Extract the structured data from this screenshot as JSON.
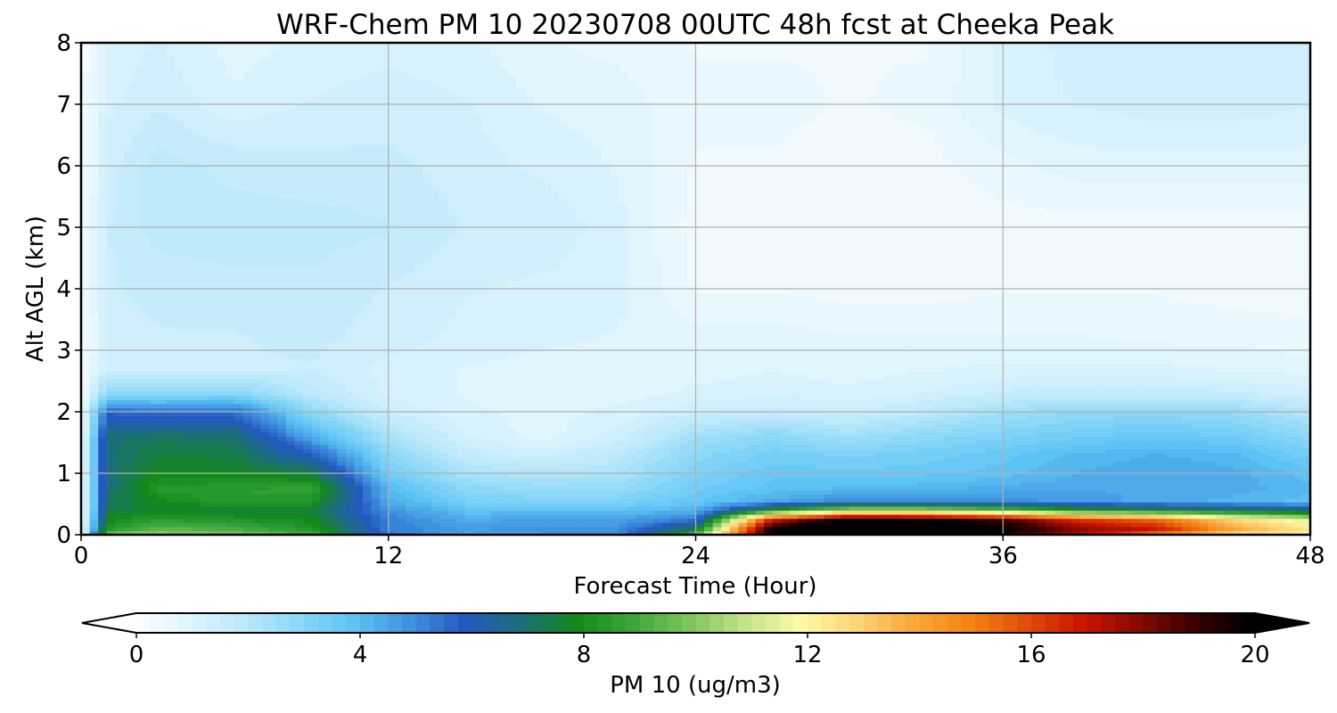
{
  "chart_data": {
    "type": "heatmap",
    "title": "WRF-Chem PM 10  20230708 00UTC 48h fcst at Cheeka Peak",
    "xlabel": "Forecast Time (Hour)",
    "ylabel": "Alt AGL (km)",
    "xlim": [
      0,
      48
    ],
    "ylim": [
      0,
      8
    ],
    "x_ticks": [
      0,
      12,
      24,
      36,
      48
    ],
    "y_ticks": [
      0,
      1,
      2,
      3,
      4,
      5,
      6,
      7,
      8
    ],
    "grid": true,
    "colorbar": {
      "label": "PM 10  (ug/m3)",
      "min": 0,
      "max": 20,
      "ticks": [
        0,
        4,
        8,
        12,
        16,
        20
      ],
      "extend": "both",
      "orientation": "horizontal",
      "placement": "bottom",
      "colors": [
        "#ffffff",
        "#e1f5fd",
        "#bde9fb",
        "#8cd8f7",
        "#5dc3f4",
        "#3f92de",
        "#2459c2",
        "#1c6e7a",
        "#128a1a",
        "#3ca63c",
        "#7ec45a",
        "#c4e388",
        "#fdf9a6",
        "#fcd576",
        "#f9a83c",
        "#f48513",
        "#e04f0a",
        "#cc1600",
        "#8a0a00",
        "#3c0000",
        "#000000"
      ]
    },
    "x_hours": [
      0,
      1,
      3,
      6,
      9,
      12,
      15,
      18,
      21,
      24,
      27,
      30,
      33,
      36,
      39,
      42,
      45,
      48
    ],
    "z_km": [
      0,
      0.1,
      0.25,
      0.4,
      0.55,
      0.75,
      1.0,
      1.3,
      1.6,
      2.0,
      2.3,
      2.7,
      3.2,
      4.0,
      5.0,
      6.0,
      7.0,
      8.0
    ],
    "values_ug_m3": [
      [
        0.3,
        10.0,
        10.5,
        10.0,
        9.0,
        5.5,
        4.5,
        4.8,
        5.2,
        9.5,
        20.0,
        22.0,
        21.0,
        19.5,
        17.5,
        15.0,
        12.5,
        12.0
      ],
      [
        0.3,
        8.5,
        9.5,
        9.2,
        8.5,
        5.4,
        4.8,
        5.0,
        5.0,
        7.5,
        20.0,
        22.0,
        21.5,
        20.0,
        18.0,
        17.0,
        14.0,
        12.5
      ],
      [
        0.3,
        8.0,
        8.6,
        8.4,
        8.0,
        5.3,
        4.5,
        4.7,
        4.7,
        5.5,
        17.0,
        20.5,
        20.0,
        19.0,
        16.5,
        15.5,
        13.0,
        11.5
      ],
      [
        0.3,
        7.5,
        7.8,
        7.6,
        7.6,
        5.0,
        4.0,
        4.0,
        4.0,
        4.4,
        8.5,
        11.0,
        11.0,
        10.0,
        8.5,
        8.0,
        7.5,
        7.0
      ],
      [
        0.3,
        7.2,
        8.0,
        8.6,
        8.4,
        4.5,
        3.4,
        3.3,
        3.3,
        3.8,
        4.5,
        5.2,
        5.0,
        5.0,
        4.8,
        4.5,
        4.3,
        4.0
      ],
      [
        0.3,
        7.0,
        8.5,
        8.6,
        8.8,
        4.2,
        3.0,
        2.8,
        2.8,
        3.6,
        4.0,
        4.2,
        4.3,
        4.5,
        4.6,
        4.6,
        4.5,
        4.2
      ],
      [
        0.3,
        7.0,
        8.0,
        8.0,
        7.6,
        3.6,
        2.4,
        2.2,
        2.4,
        3.3,
        3.8,
        3.7,
        3.8,
        4.0,
        4.4,
        4.6,
        4.5,
        4.0
      ],
      [
        0.3,
        7.0,
        7.6,
        7.5,
        6.0,
        3.0,
        1.8,
        1.5,
        2.0,
        3.0,
        3.5,
        3.3,
        3.5,
        3.8,
        4.2,
        4.4,
        4.2,
        3.5
      ],
      [
        0.3,
        7.0,
        7.3,
        7.2,
        4.5,
        2.4,
        1.4,
        1.0,
        1.5,
        2.6,
        3.0,
        2.6,
        3.0,
        3.3,
        3.6,
        3.8,
        3.6,
        3.0
      ],
      [
        0.3,
        5.8,
        5.5,
        5.6,
        3.0,
        1.6,
        1.2,
        1.0,
        1.2,
        1.6,
        1.8,
        1.6,
        2.0,
        2.6,
        2.9,
        3.0,
        2.8,
        2.2
      ],
      [
        0.3,
        3.0,
        3.0,
        3.1,
        2.0,
        1.3,
        1.1,
        1.0,
        1.0,
        1.2,
        1.3,
        1.2,
        1.4,
        1.7,
        1.8,
        1.8,
        1.7,
        1.5
      ],
      [
        0.2,
        1.6,
        1.6,
        1.6,
        1.6,
        1.3,
        1.1,
        1.0,
        1.0,
        1.0,
        1.1,
        1.0,
        1.1,
        1.2,
        1.2,
        1.2,
        1.1,
        1.0
      ],
      [
        0.2,
        1.5,
        1.6,
        1.6,
        1.7,
        1.5,
        1.3,
        1.2,
        1.1,
        1.0,
        1.0,
        0.9,
        0.9,
        0.9,
        0.9,
        0.8,
        0.8,
        0.7
      ],
      [
        0.2,
        1.6,
        1.7,
        1.8,
        1.8,
        1.6,
        1.4,
        1.3,
        1.2,
        0.6,
        0.6,
        0.5,
        0.5,
        0.6,
        0.6,
        0.6,
        0.5,
        0.5
      ],
      [
        0.2,
        1.6,
        2.0,
        2.0,
        2.0,
        1.9,
        1.6,
        1.6,
        1.2,
        0.5,
        0.5,
        0.4,
        0.4,
        0.5,
        0.5,
        0.5,
        0.5,
        0.5
      ],
      [
        0.2,
        1.5,
        2.0,
        1.8,
        1.7,
        1.7,
        1.5,
        1.3,
        1.1,
        0.6,
        0.6,
        0.5,
        0.5,
        0.8,
        1.0,
        1.0,
        1.0,
        1.0
      ],
      [
        0.2,
        1.3,
        1.6,
        1.2,
        1.4,
        1.5,
        1.4,
        1.1,
        1.0,
        0.7,
        0.7,
        0.6,
        0.7,
        1.2,
        1.4,
        1.5,
        1.5,
        1.4
      ],
      [
        0.2,
        1.2,
        1.4,
        1.0,
        1.2,
        1.3,
        1.2,
        0.9,
        0.8,
        0.6,
        0.6,
        0.6,
        0.6,
        1.2,
        1.5,
        1.6,
        1.6,
        1.4
      ]
    ]
  }
}
